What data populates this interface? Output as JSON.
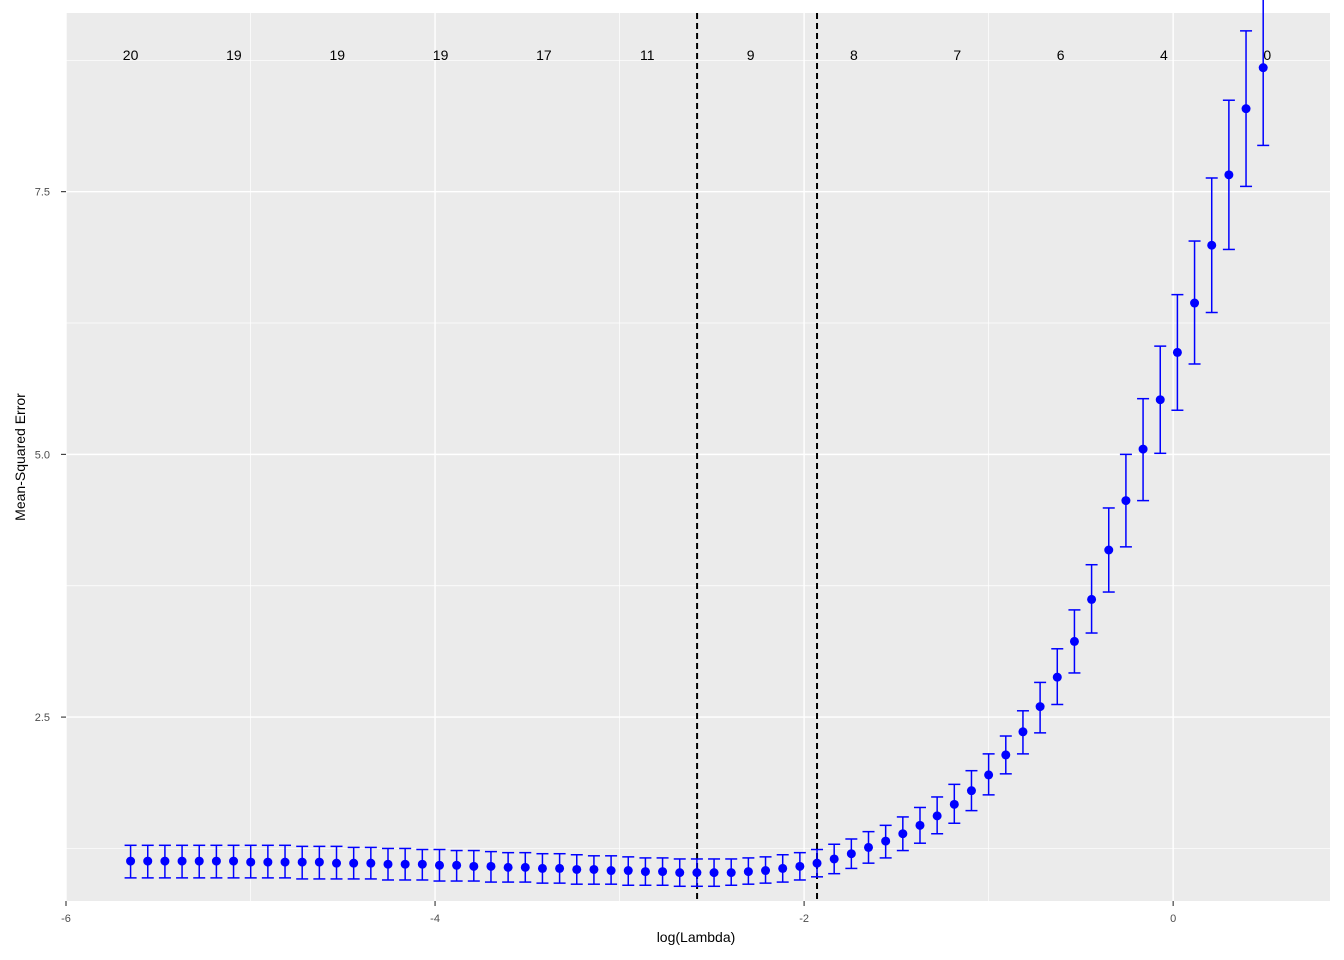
{
  "chart_data": {
    "type": "scatter",
    "title": "",
    "xlabel": "log(Lambda)",
    "ylabel": "Mean-Squared Error",
    "xlim": [
      -6.0,
      0.85
    ],
    "ylim": [
      0.75,
      9.2
    ],
    "x_ticks": [
      {
        "value": -6,
        "label": "-6"
      },
      {
        "value": -4,
        "label": "-4"
      },
      {
        "value": -2,
        "label": "-2"
      },
      {
        "value": 0,
        "label": "0"
      }
    ],
    "y_ticks": [
      {
        "value": 2.5,
        "label": "2.5"
      },
      {
        "value": 5.0,
        "label": "5.0"
      },
      {
        "value": 7.5,
        "label": "7.5"
      }
    ],
    "x_minor_gridlines": [
      -5,
      -3,
      -1
    ],
    "y_minor_gridlines": [
      1.25,
      3.75,
      6.25,
      8.75
    ],
    "grid": true,
    "colors": {
      "panel_background": "#ebebeb",
      "grid": "#ffffff",
      "points": "#0000ff",
      "vlines": "#000000"
    },
    "top_labels": [
      {
        "x": -5.65,
        "label": "20"
      },
      {
        "x": -5.09,
        "label": "19"
      },
      {
        "x": -4.53,
        "label": "19"
      },
      {
        "x": -3.97,
        "label": "19"
      },
      {
        "x": -3.41,
        "label": "17"
      },
      {
        "x": -2.85,
        "label": "11"
      },
      {
        "x": -2.29,
        "label": "9"
      },
      {
        "x": -1.73,
        "label": "8"
      },
      {
        "x": -1.17,
        "label": "7"
      },
      {
        "x": -0.61,
        "label": "6"
      },
      {
        "x": -0.05,
        "label": "4"
      },
      {
        "x": 0.51,
        "label": "0"
      }
    ],
    "vlines": [
      -2.58,
      -1.93
    ],
    "series": [
      {
        "x": [
          -5.65,
          -5.557,
          -5.464,
          -5.371,
          -5.278,
          -5.185,
          -5.092,
          -4.999,
          -4.906,
          -4.813,
          -4.72,
          -4.627,
          -4.534,
          -4.441,
          -4.348,
          -4.255,
          -4.162,
          -4.069,
          -3.976,
          -3.883,
          -3.79,
          -3.697,
          -3.604,
          -3.511,
          -3.418,
          -3.325,
          -3.232,
          -3.139,
          -3.046,
          -2.953,
          -2.86,
          -2.767,
          -2.674,
          -2.581,
          -2.488,
          -2.395,
          -2.302,
          -2.209,
          -2.116,
          -2.023,
          -1.93,
          -1.837,
          -1.744,
          -1.651,
          -1.558,
          -1.465,
          -1.372,
          -1.279,
          -1.186,
          -1.093,
          -1.0,
          -0.907,
          -0.814,
          -0.721,
          -0.628,
          -0.535,
          -0.442,
          -0.349,
          -0.256,
          -0.163,
          -0.07,
          0.023,
          0.116,
          0.209,
          0.302,
          0.395,
          0.488
        ],
        "y": [
          1.13,
          1.13,
          1.13,
          1.13,
          1.13,
          1.13,
          1.13,
          1.12,
          1.12,
          1.12,
          1.12,
          1.12,
          1.11,
          1.11,
          1.11,
          1.1,
          1.1,
          1.1,
          1.09,
          1.09,
          1.08,
          1.08,
          1.07,
          1.07,
          1.06,
          1.06,
          1.05,
          1.05,
          1.04,
          1.04,
          1.03,
          1.03,
          1.02,
          1.02,
          1.02,
          1.02,
          1.03,
          1.04,
          1.06,
          1.08,
          1.11,
          1.15,
          1.2,
          1.26,
          1.32,
          1.39,
          1.47,
          1.56,
          1.67,
          1.8,
          1.95,
          2.14,
          2.36,
          2.6,
          2.88,
          3.22,
          3.62,
          4.09,
          4.56,
          5.05,
          5.52,
          5.97,
          6.44,
          6.99,
          7.66,
          8.29,
          8.68
        ],
        "lower": [
          0.97,
          0.97,
          0.97,
          0.97,
          0.97,
          0.97,
          0.97,
          0.97,
          0.97,
          0.97,
          0.96,
          0.96,
          0.96,
          0.96,
          0.96,
          0.95,
          0.95,
          0.95,
          0.94,
          0.94,
          0.94,
          0.93,
          0.93,
          0.93,
          0.92,
          0.92,
          0.91,
          0.91,
          0.91,
          0.9,
          0.9,
          0.9,
          0.89,
          0.89,
          0.89,
          0.9,
          0.91,
          0.92,
          0.93,
          0.95,
          0.98,
          1.01,
          1.06,
          1.11,
          1.16,
          1.23,
          1.3,
          1.39,
          1.49,
          1.61,
          1.76,
          1.96,
          2.15,
          2.35,
          2.62,
          2.92,
          3.3,
          3.69,
          4.12,
          4.56,
          5.01,
          5.42,
          5.86,
          6.35,
          6.95,
          7.55,
          7.94
        ],
        "upper": [
          1.28,
          1.28,
          1.28,
          1.28,
          1.28,
          1.28,
          1.28,
          1.28,
          1.28,
          1.28,
          1.27,
          1.27,
          1.27,
          1.26,
          1.26,
          1.25,
          1.25,
          1.24,
          1.24,
          1.23,
          1.23,
          1.22,
          1.21,
          1.21,
          1.2,
          1.2,
          1.19,
          1.18,
          1.18,
          1.17,
          1.16,
          1.16,
          1.15,
          1.15,
          1.15,
          1.15,
          1.16,
          1.17,
          1.19,
          1.21,
          1.24,
          1.29,
          1.34,
          1.41,
          1.47,
          1.55,
          1.64,
          1.74,
          1.86,
          1.99,
          2.15,
          2.32,
          2.56,
          2.83,
          3.15,
          3.52,
          3.95,
          4.49,
          5.0,
          5.53,
          6.03,
          6.52,
          7.03,
          7.63,
          8.37,
          9.03,
          9.43
        ]
      }
    ]
  }
}
